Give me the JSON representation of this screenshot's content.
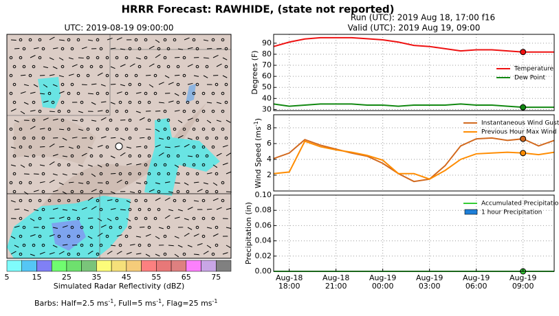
{
  "title": "HRRR Forecast: RAWHIDE, (state not reported)",
  "run": "Run (UTC): 2019 Aug 18, 17:00 f16",
  "valid": "Valid (UTC): 2019 Aug 19, 09:00",
  "note": [
    "Barbs: Half=2.5 ms",
    "-1",
    ", Full=5 ms",
    "-1",
    ", Flag=25 ms",
    "-1"
  ],
  "chart_data": [
    {
      "type": "map",
      "title": "UTC: 2019-08-19 09:00:00"
    },
    {
      "type": "colorbar",
      "label": "Simulated Radar Reflectivity (dBZ)",
      "bounds": [
        5,
        10,
        15,
        20,
        25,
        30,
        35,
        40,
        45,
        50,
        55,
        60,
        65,
        70,
        75,
        80
      ],
      "colors": [
        "#7ffcfc",
        "#55c6f5",
        "#8080f5",
        "#70fc70",
        "#6ee06e",
        "#7ac47a",
        "#fcfc7a",
        "#f5e07a",
        "#f5cc7a",
        "#fc8080",
        "#e87878",
        "#de8080",
        "#fc80fc",
        "#c8a6e6",
        "#808080"
      ],
      "ticks": [
        5,
        15,
        25,
        35,
        45,
        55,
        65,
        75
      ]
    },
    {
      "type": "line",
      "ylabel": "Degrees (F)",
      "x": [
        "Aug-18 17:00",
        "Aug-18 18:00",
        "Aug-18 19:00",
        "Aug-18 20:00",
        "Aug-18 21:00",
        "Aug-18 22:00",
        "Aug-18 23:00",
        "Aug-19 00:00",
        "Aug-19 01:00",
        "Aug-19 02:00",
        "Aug-19 03:00",
        "Aug-19 04:00",
        "Aug-19 05:00",
        "Aug-19 06:00",
        "Aug-19 07:00",
        "Aug-19 08:00",
        "Aug-19 09:00",
        "Aug-19 10:00",
        "Aug-19 11:00"
      ],
      "series": [
        {
          "name": "Temperature",
          "color": "#ee1111",
          "values": [
            87,
            91,
            93.8,
            95,
            95,
            95,
            94,
            93,
            91,
            88,
            87,
            85,
            83,
            84,
            84,
            83,
            82,
            82,
            82
          ]
        },
        {
          "name": "Dew Point",
          "color": "#118811",
          "values": [
            35,
            33,
            34,
            35,
            35,
            35,
            34,
            34,
            33,
            34,
            34,
            34,
            35,
            34,
            34,
            33,
            32,
            32,
            32
          ]
        }
      ],
      "ylim": [
        29,
        98
      ],
      "yticks": [
        30,
        40,
        50,
        60,
        70,
        80,
        90
      ],
      "grid": true,
      "legend": "right",
      "highlight": "Aug-19 09:00"
    },
    {
      "type": "line",
      "ylabel": [
        "Wind Speed (ms",
        "-1",
        ")"
      ],
      "x": [
        "Aug-18 17:00",
        "Aug-18 18:00",
        "Aug-18 19:00",
        "Aug-18 20:00",
        "Aug-18 21:00",
        "Aug-18 22:00",
        "Aug-18 23:00",
        "Aug-19 00:00",
        "Aug-19 01:00",
        "Aug-19 02:00",
        "Aug-19 03:00",
        "Aug-19 04:00",
        "Aug-19 05:00",
        "Aug-19 06:00",
        "Aug-19 07:00",
        "Aug-19 08:00",
        "Aug-19 09:00",
        "Aug-19 10:00",
        "Aug-19 11:00"
      ],
      "series": [
        {
          "name": "Instantaneous Wind Gust",
          "color": "#d2691e",
          "values": [
            4.1,
            4.8,
            6.5,
            5.8,
            5.3,
            4.8,
            4.4,
            3.5,
            2.2,
            1.2,
            1.5,
            3.2,
            5.7,
            6.6,
            6.7,
            6.4,
            6.6,
            5.7,
            6.4
          ]
        },
        {
          "name": "Previous Hour Max Wind",
          "color": "#ff8c00",
          "values": [
            2.2,
            2.4,
            6.3,
            5.6,
            5.2,
            4.9,
            4.5,
            3.9,
            2.2,
            2.2,
            1.5,
            2.6,
            4.0,
            4.7,
            4.8,
            4.9,
            4.8,
            4.6,
            4.9
          ]
        }
      ],
      "ylim": [
        0,
        9.65
      ],
      "yticks": [
        2,
        4,
        6,
        8
      ],
      "grid": true,
      "legend": "top-right",
      "highlight": "Aug-19 09:00"
    },
    {
      "type": "line",
      "ylabel": "Precipitation (in)",
      "x": [
        "Aug-18 17:00",
        "Aug-18 18:00",
        "Aug-18 19:00",
        "Aug-18 20:00",
        "Aug-18 21:00",
        "Aug-18 22:00",
        "Aug-18 23:00",
        "Aug-19 00:00",
        "Aug-19 01:00",
        "Aug-19 02:00",
        "Aug-19 03:00",
        "Aug-19 04:00",
        "Aug-19 05:00",
        "Aug-19 06:00",
        "Aug-19 07:00",
        "Aug-19 08:00",
        "Aug-19 09:00",
        "Aug-19 10:00",
        "Aug-19 11:00"
      ],
      "series": [
        {
          "name": "Accumulated Precipitation",
          "color": "#33cc33",
          "values": [
            0,
            0,
            0,
            0,
            0,
            0,
            0,
            0,
            0,
            0,
            0,
            0,
            0,
            0,
            0,
            0,
            0,
            0,
            0
          ]
        },
        {
          "name": "1 hour Precipitation",
          "color": "#1f7fd8",
          "kind": "bar",
          "values": [
            0,
            0,
            0,
            0,
            0,
            0,
            0,
            0,
            0,
            0,
            0,
            0,
            0,
            0,
            0,
            0,
            0,
            0,
            0
          ]
        }
      ],
      "ylim": [
        0,
        0.1
      ],
      "yticks": [
        {
          "value": 0,
          "label": "0.00"
        },
        {
          "value": 0.02,
          "label": "0.02"
        },
        {
          "value": 0.04,
          "label": "0.04"
        },
        {
          "value": 0.06,
          "label": "0.06"
        },
        {
          "value": 0.08,
          "label": "0.08"
        },
        {
          "value": 0.1,
          "label": "0.10"
        }
      ],
      "xticks": [
        {
          "value": "Aug-18 18:00",
          "label": [
            "Aug-18",
            "18:00"
          ]
        },
        {
          "value": "Aug-18 21:00",
          "label": [
            "Aug-18",
            "21:00"
          ]
        },
        {
          "value": "Aug-19 00:00",
          "label": [
            "Aug-19",
            "00:00"
          ]
        },
        {
          "value": "Aug-19 03:00",
          "label": [
            "Aug-19",
            "03:00"
          ]
        },
        {
          "value": "Aug-19 06:00",
          "label": [
            "Aug-19",
            "06:00"
          ]
        },
        {
          "value": "Aug-19 09:00",
          "label": [
            "Aug-19",
            "09:00"
          ]
        }
      ],
      "grid": true,
      "legend": "top-right",
      "highlight": "Aug-19 09:00"
    }
  ]
}
